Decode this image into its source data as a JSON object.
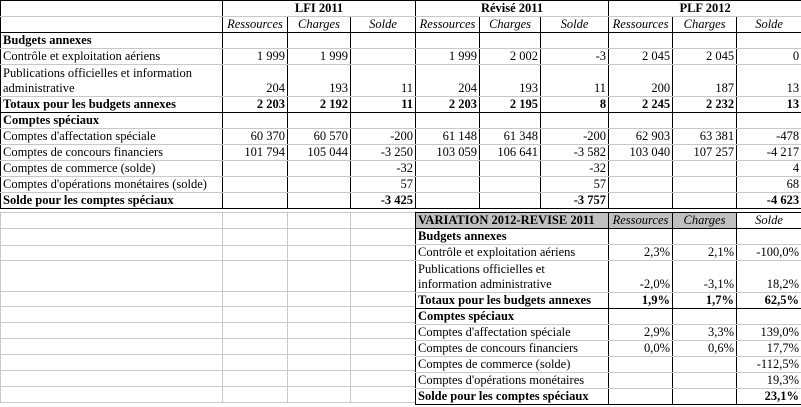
{
  "top": {
    "groups": [
      "LFI 2011",
      "Révisé 2011",
      "PLF 2012"
    ],
    "columns": [
      "Ressources",
      "Charges",
      "Solde"
    ],
    "rows": [
      {
        "type": "section",
        "label": "Budgets annexes",
        "values": [
          "",
          "",
          "",
          "",
          "",
          "",
          "",
          "",
          ""
        ]
      },
      {
        "type": "normal",
        "label": "Contrôle et exploitation aériens",
        "values": [
          "1 999",
          "1 999",
          "",
          "1 999",
          "2 002",
          "-3",
          "2 045",
          "2 045",
          "0"
        ]
      },
      {
        "type": "two",
        "label": "Publications officielles et information administrative",
        "values": [
          "204",
          "193",
          "11",
          "204",
          "193",
          "11",
          "200",
          "187",
          "13"
        ]
      },
      {
        "type": "total",
        "label": "Totaux pour les budgets annexes",
        "values": [
          "2 203",
          "2 192",
          "11",
          "2 203",
          "2 195",
          "8",
          "2 245",
          "2 232",
          "13"
        ]
      },
      {
        "type": "section",
        "label": "Comptes spéciaux",
        "values": [
          "",
          "",
          "",
          "",
          "",
          "",
          "",
          "",
          ""
        ]
      },
      {
        "type": "normal",
        "label": "Comptes d'affectation spéciale",
        "values": [
          "60 370",
          "60 570",
          "-200",
          "61 148",
          "61 348",
          "-200",
          "62 903",
          "63 381",
          "-478"
        ]
      },
      {
        "type": "normal",
        "label": "Comptes de concours financiers",
        "values": [
          "101 794",
          "105 044",
          "-3 250",
          "103 059",
          "106 641",
          "-3 582",
          "103 040",
          "107 257",
          "-4 217"
        ]
      },
      {
        "type": "normal",
        "label": "Comptes de commerce (solde)",
        "values": [
          "",
          "",
          "-32",
          "",
          "",
          "-32",
          "",
          "",
          "4"
        ]
      },
      {
        "type": "normal",
        "label": "Comptes d'opérations monétaires (solde)",
        "values": [
          "",
          "",
          "57",
          "",
          "",
          "57",
          "",
          "",
          "68"
        ]
      },
      {
        "type": "final",
        "label": "Solde pour les comptes spéciaux",
        "values": [
          "",
          "",
          "-3 425",
          "",
          "",
          "-3 757",
          "",
          "",
          "-4 623"
        ]
      }
    ]
  },
  "variation": {
    "title": "VARIATION 2012-REVISE 2011",
    "columns": [
      "Ressources",
      "Charges",
      "Solde"
    ],
    "header_fill": "#c0c0c0",
    "rows": [
      {
        "type": "section",
        "label": "Budgets annexes",
        "values": [
          "",
          "",
          ""
        ]
      },
      {
        "type": "normal",
        "label": "Contrôle et exploitation aériens",
        "values": [
          "2,3%",
          "2,1%",
          "-100,0%"
        ]
      },
      {
        "type": "two",
        "label": "Publications officielles et information administrative",
        "values": [
          "-2,0%",
          "-3,1%",
          "18,2%"
        ]
      },
      {
        "type": "total",
        "label": "Totaux pour les budgets annexes",
        "values": [
          "1,9%",
          "1,7%",
          "62,5%"
        ]
      },
      {
        "type": "section",
        "label": "Comptes spéciaux",
        "values": [
          "",
          "",
          ""
        ]
      },
      {
        "type": "normal",
        "label": "Comptes d'affectation spéciale",
        "values": [
          "2,9%",
          "3,3%",
          "139,0%"
        ]
      },
      {
        "type": "normal",
        "label": "Comptes de concours financiers",
        "values": [
          "0,0%",
          "0,6%",
          "17,7%"
        ]
      },
      {
        "type": "normal",
        "label": "Comptes de commerce (solde)",
        "values": [
          "",
          "",
          "-112,5%"
        ]
      },
      {
        "type": "normal",
        "label": "Comptes d'opérations monétaires",
        "values": [
          "",
          "",
          "19,3%"
        ]
      },
      {
        "type": "final",
        "label": "Solde pour les comptes spéciaux",
        "values": [
          "",
          "",
          "23,1%"
        ]
      }
    ]
  }
}
